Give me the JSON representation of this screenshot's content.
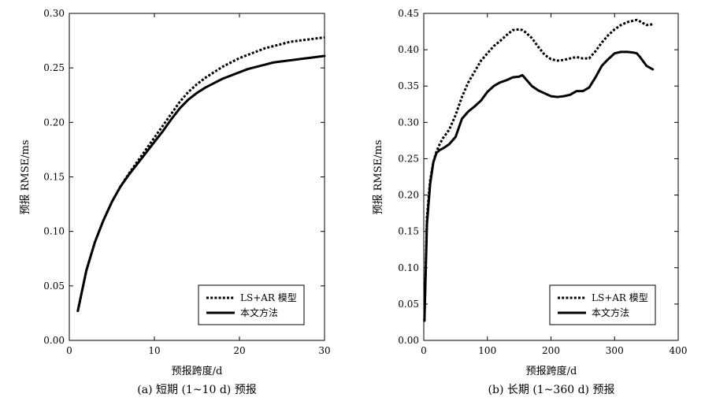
{
  "chart_data": [
    {
      "type": "line",
      "caption": "(a) 短期 (1~10 d) 预报",
      "xlabel": "预报跨度/d",
      "ylabel": "预报 RMSE/ms",
      "xlim": [
        0,
        30
      ],
      "ylim": [
        0,
        0.3
      ],
      "xticks": [
        0,
        10,
        20,
        30
      ],
      "yticks": [
        "0.00",
        "0.05",
        "0.10",
        "0.15",
        "0.20",
        "0.25",
        "0.30"
      ],
      "grid": false,
      "legend_position": "bottom-right",
      "series": [
        {
          "name": "LS+AR 模型",
          "style": "dotted",
          "x": [
            1,
            2,
            3,
            4,
            5,
            6,
            7,
            8,
            9,
            10,
            11,
            12,
            13,
            14,
            15,
            16,
            17,
            18,
            19,
            20,
            21,
            22,
            23,
            24,
            25,
            26,
            27,
            28,
            29,
            30
          ],
          "values": [
            0.027,
            0.064,
            0.09,
            0.11,
            0.127,
            0.141,
            0.153,
            0.164,
            0.175,
            0.186,
            0.197,
            0.208,
            0.219,
            0.228,
            0.235,
            0.241,
            0.246,
            0.251,
            0.255,
            0.259,
            0.262,
            0.265,
            0.268,
            0.27,
            0.272,
            0.274,
            0.275,
            0.276,
            0.277,
            0.278
          ]
        },
        {
          "name": "本文方法",
          "style": "solid",
          "x": [
            1,
            2,
            3,
            4,
            5,
            6,
            7,
            8,
            9,
            10,
            11,
            12,
            13,
            14,
            15,
            16,
            17,
            18,
            19,
            20,
            21,
            22,
            23,
            24,
            25,
            26,
            27,
            28,
            29,
            30
          ],
          "values": [
            0.027,
            0.064,
            0.09,
            0.11,
            0.127,
            0.141,
            0.152,
            0.162,
            0.172,
            0.182,
            0.192,
            0.203,
            0.213,
            0.221,
            0.227,
            0.232,
            0.236,
            0.24,
            0.243,
            0.246,
            0.249,
            0.251,
            0.253,
            0.255,
            0.256,
            0.257,
            0.258,
            0.259,
            0.26,
            0.261
          ]
        }
      ]
    },
    {
      "type": "line",
      "caption": "(b) 长期 (1~360 d) 预报",
      "xlabel": "预报跨度/d",
      "ylabel": "预报 RMSE/ms",
      "xlim": [
        0,
        400
      ],
      "ylim": [
        0,
        0.45
      ],
      "xticks": [
        0,
        100,
        200,
        300,
        400
      ],
      "yticks": [
        "0.00",
        "0.05",
        "0.10",
        "0.15",
        "0.20",
        "0.25",
        "0.30",
        "0.35",
        "0.40",
        "0.45"
      ],
      "grid": false,
      "legend_position": "bottom-right",
      "series": [
        {
          "name": "LS+AR 模型",
          "style": "dotted",
          "x": [
            1,
            5,
            10,
            15,
            20,
            25,
            30,
            40,
            50,
            60,
            70,
            80,
            90,
            100,
            110,
            120,
            130,
            140,
            150,
            155,
            160,
            170,
            180,
            190,
            200,
            210,
            220,
            230,
            240,
            250,
            260,
            270,
            280,
            290,
            300,
            310,
            320,
            330,
            335,
            340,
            350,
            360
          ],
          "values": [
            0.027,
            0.17,
            0.22,
            0.245,
            0.26,
            0.27,
            0.278,
            0.29,
            0.31,
            0.335,
            0.355,
            0.37,
            0.385,
            0.395,
            0.405,
            0.412,
            0.42,
            0.427,
            0.428,
            0.427,
            0.424,
            0.416,
            0.404,
            0.393,
            0.387,
            0.385,
            0.386,
            0.388,
            0.39,
            0.388,
            0.388,
            0.398,
            0.41,
            0.42,
            0.428,
            0.434,
            0.438,
            0.44,
            0.441,
            0.439,
            0.434,
            0.435
          ]
        },
        {
          "name": "本文方法",
          "style": "solid",
          "x": [
            1,
            5,
            10,
            15,
            20,
            25,
            30,
            40,
            50,
            60,
            70,
            80,
            90,
            100,
            110,
            120,
            130,
            140,
            150,
            155,
            160,
            170,
            180,
            190,
            200,
            210,
            220,
            230,
            240,
            250,
            260,
            270,
            280,
            290,
            300,
            310,
            320,
            330,
            335,
            340,
            350,
            360
          ],
          "values": [
            0.027,
            0.16,
            0.215,
            0.245,
            0.258,
            0.262,
            0.264,
            0.27,
            0.28,
            0.305,
            0.315,
            0.322,
            0.33,
            0.342,
            0.35,
            0.355,
            0.358,
            0.362,
            0.363,
            0.365,
            0.36,
            0.35,
            0.344,
            0.34,
            0.336,
            0.335,
            0.336,
            0.338,
            0.343,
            0.343,
            0.348,
            0.362,
            0.378,
            0.387,
            0.395,
            0.397,
            0.397,
            0.396,
            0.395,
            0.39,
            0.378,
            0.373
          ]
        }
      ]
    }
  ]
}
